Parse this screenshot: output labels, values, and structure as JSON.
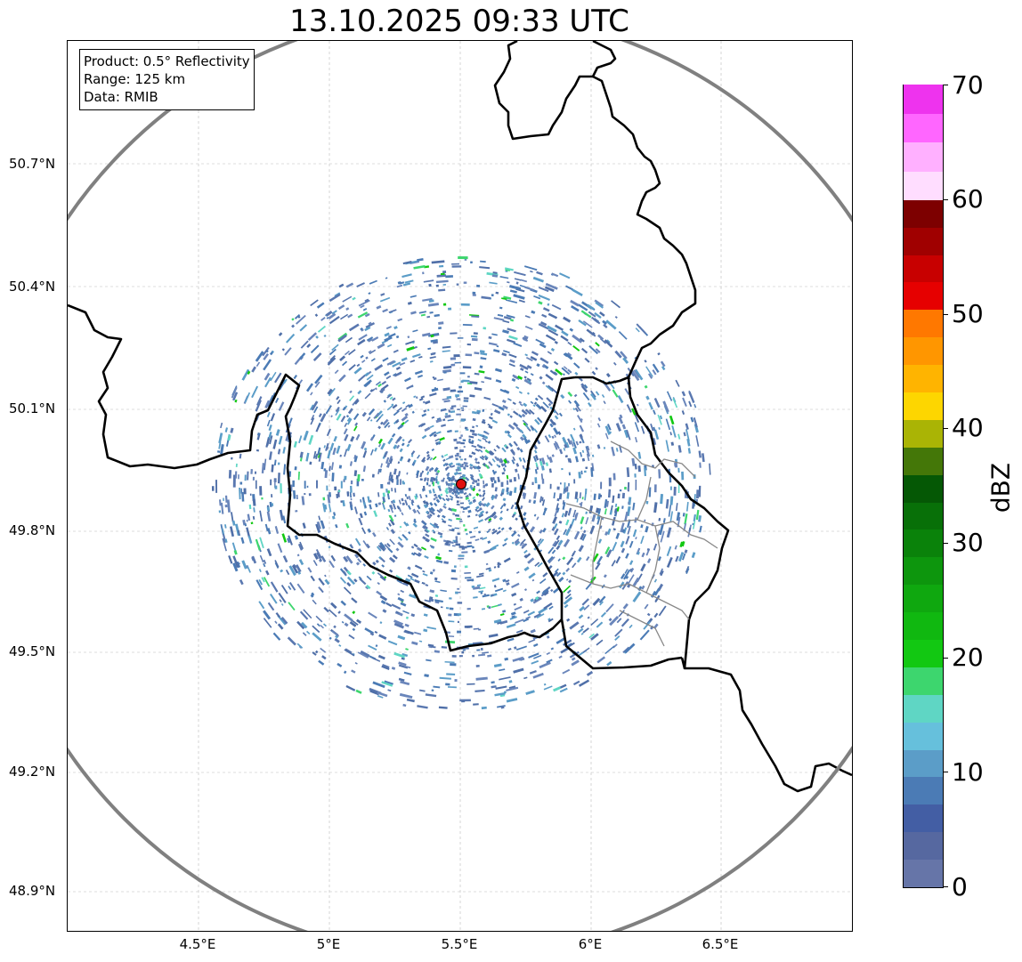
{
  "title": "13.10.2025 09:33 UTC",
  "info": {
    "product": "Product: 0.5° Reflectivity",
    "range": "Range: 125 km",
    "data": "Data: RMIB"
  },
  "axes": {
    "lat_labels": [
      "50.7°N",
      "50.4°N",
      "50.1°N",
      "49.8°N",
      "49.5°N",
      "49.2°N",
      "48.9°N"
    ],
    "lon_labels": [
      "4.5°E",
      "5°E",
      "5.5°E",
      "6°E",
      "6.5°E"
    ]
  },
  "radar": {
    "site_marker": "radar-site",
    "marker_color": "#e01010",
    "range_ring_color": "#808080"
  },
  "colorbar": {
    "label": "dBZ",
    "min": 0,
    "max": 70,
    "tick_labels": [
      "0",
      "10",
      "20",
      "30",
      "40",
      "50",
      "60",
      "70"
    ],
    "colors": [
      "#6675a8",
      "#5668a0",
      "#435ea4",
      "#4b7bb5",
      "#5b9dc8",
      "#66c0dc",
      "#5fd6c4",
      "#3dd66e",
      "#12c812",
      "#10b810",
      "#0fa80f",
      "#0d960d",
      "#0a820a",
      "#087008",
      "#055805",
      "#447708",
      "#aab405",
      "#fdd600",
      "#ffb400",
      "#ff9600",
      "#ff7800",
      "#e60000",
      "#c80000",
      "#a00000",
      "#7d0000",
      "#ffddff",
      "#ffb0ff",
      "#ff66ff",
      "#ee33ee"
    ]
  }
}
